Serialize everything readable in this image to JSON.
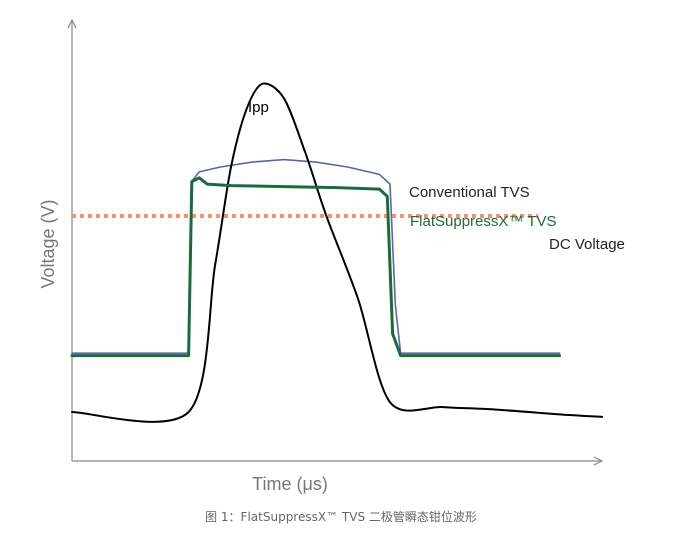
{
  "chart_data": {
    "type": "line",
    "title": "",
    "xlabel": "Time (μs)",
    "ylabel": "Voltage (V)",
    "grid": false,
    "legend": "inline labels at right end of curves",
    "series": [
      {
        "name": "Ipp",
        "color": "#000000",
        "x": [
          0,
          22,
          27,
          30,
          33,
          36,
          40,
          44,
          48,
          54,
          60,
          70,
          80,
          92,
          100
        ],
        "y": [
          1.0,
          1.0,
          4.0,
          6.0,
          7.2,
          7.7,
          7.4,
          6.3,
          5.0,
          3.3,
          1.2,
          1.1,
          1.05,
          0.95,
          0.9
        ]
      },
      {
        "name": "Conventional TVS",
        "color": "#5b63b0",
        "x": [
          0,
          22,
          22.5,
          24,
          28,
          34,
          40,
          46,
          52,
          58,
          60,
          61,
          62,
          70,
          80,
          92
        ],
        "y": [
          2.2,
          2.2,
          5.7,
          5.9,
          6.0,
          6.1,
          6.15,
          6.1,
          6.0,
          5.85,
          5.65,
          3.2,
          2.2,
          2.2,
          2.2,
          2.2
        ]
      },
      {
        "name": "FlatSuppressX™ TVS",
        "color": "#1a6b3a",
        "x": [
          0,
          22,
          22.6,
          24,
          25.5,
          30,
          40,
          50,
          58,
          59.5,
          60.5,
          62,
          70,
          80,
          92
        ],
        "y": [
          2.15,
          2.15,
          5.7,
          5.78,
          5.65,
          5.62,
          5.6,
          5.58,
          5.55,
          5.4,
          2.6,
          2.15,
          2.15,
          2.15,
          2.15
        ]
      },
      {
        "name": "DC Voltage",
        "color": "#f4946b",
        "style": "dotted",
        "x": [
          0,
          88
        ],
        "y": [
          5.0,
          5.0
        ]
      }
    ],
    "xlim": [
      0,
      100
    ],
    "ylim": [
      0,
      9
    ]
  },
  "axes": {
    "color": "#888888",
    "label_color": "#777777"
  },
  "caption": "图 1：FlatSuppressX™ TVS 二极管瞬态钳位波形"
}
